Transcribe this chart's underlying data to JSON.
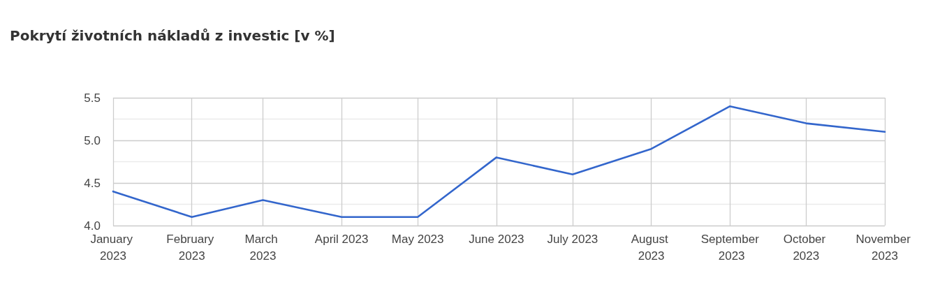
{
  "chart_data": {
    "type": "line",
    "title": "Pokrytí životních nákladů z investic [v %]",
    "x": [
      "2023-01",
      "2023-02",
      "2023-03",
      "2023-04",
      "2023-05",
      "2023-06",
      "2023-07",
      "2023-08",
      "2023-09",
      "2023-10",
      "2023-11"
    ],
    "series": [
      {
        "color": "#3366cc",
        "values": [
          4.4,
          4.1,
          4.3,
          4.1,
          4.1,
          4.8,
          4.6,
          4.9,
          5.4,
          5.2,
          5.1
        ]
      }
    ],
    "xlim": [
      "2023-01",
      "2023-11"
    ],
    "xticks": [
      {
        "value": "2023-01",
        "label": "January 2023"
      },
      {
        "value": "2023-02",
        "label": "February 2023"
      },
      {
        "value": "2023-03",
        "label": "March 2023"
      },
      {
        "value": "2023-04",
        "label": "April 2023"
      },
      {
        "value": "2023-05",
        "label": "May 2023"
      },
      {
        "value": "2023-06",
        "label": "June 2023"
      },
      {
        "value": "2023-07",
        "label": "July 2023"
      },
      {
        "value": "2023-08",
        "label": "August 2023"
      },
      {
        "value": "2023-09",
        "label": "September 2023"
      },
      {
        "value": "2023-10",
        "label": "October 2023"
      },
      {
        "value": "2023-11",
        "label": "November 2023"
      }
    ],
    "ylim": [
      4,
      5.5
    ],
    "yticks": [
      {
        "value": 4,
        "label": "4.0"
      },
      {
        "value": 4.25,
        "label": null
      },
      {
        "value": 4.5,
        "label": "4.5"
      },
      {
        "value": 4.75,
        "label": null
      },
      {
        "value": 5,
        "label": "5.0"
      },
      {
        "value": 5.25,
        "label": null
      },
      {
        "value": 5.5,
        "label": "5.5"
      }
    ],
    "grid": true,
    "marker": "none",
    "line_style": "solid"
  }
}
